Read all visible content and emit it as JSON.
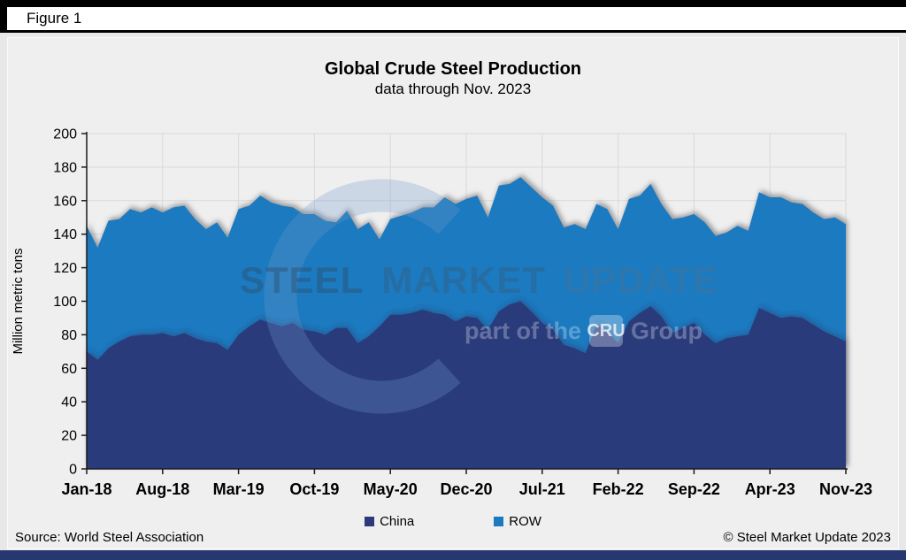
{
  "page": {
    "figure_label": "Figure 1"
  },
  "footer": {
    "source": "Source: World Steel Association",
    "copyright": "© Steel Market Update 2023"
  },
  "watermark": {
    "word1": "STEEL",
    "word2": "MARKET",
    "word3": "UPDATE",
    "line2_prefix": "part of the",
    "line2_box": "CRU",
    "line2_suffix": "Group"
  },
  "colors": {
    "china_area": "#2A3A7B",
    "row_area": "#1B7AC0",
    "plot_background": "#EFEFEF",
    "page_background": "#E8E8E8",
    "footer_strip": "#27376F",
    "gridline": "#D9D9D9",
    "axis": "#1a1a1a"
  },
  "chart_data": {
    "type": "area",
    "stacked": true,
    "title": "Global Crude Steel Production",
    "subtitle": "data through Nov. 2023",
    "xlabel": "",
    "ylabel": "Million metric tons",
    "ylim": [
      0,
      200
    ],
    "ytick_step": 20,
    "ytick_labels": [
      "0",
      "20",
      "40",
      "60",
      "80",
      "100",
      "120",
      "140",
      "160",
      "180",
      "200"
    ],
    "grid": true,
    "legend_position": "bottom",
    "x": [
      "Jan-18",
      "Feb-18",
      "Mar-18",
      "Apr-18",
      "May-18",
      "Jun-18",
      "Jul-18",
      "Aug-18",
      "Sep-18",
      "Oct-18",
      "Nov-18",
      "Dec-18",
      "Jan-19",
      "Feb-19",
      "Mar-19",
      "Apr-19",
      "May-19",
      "Jun-19",
      "Jul-19",
      "Aug-19",
      "Sep-19",
      "Oct-19",
      "Nov-19",
      "Dec-19",
      "Jan-20",
      "Feb-20",
      "Mar-20",
      "Apr-20",
      "May-20",
      "Jun-20",
      "Jul-20",
      "Aug-20",
      "Sep-20",
      "Oct-20",
      "Nov-20",
      "Dec-20",
      "Jan-21",
      "Feb-21",
      "Mar-21",
      "Apr-21",
      "May-21",
      "Jun-21",
      "Jul-21",
      "Aug-21",
      "Sep-21",
      "Oct-21",
      "Nov-21",
      "Dec-21",
      "Jan-22",
      "Feb-22",
      "Mar-22",
      "Apr-22",
      "May-22",
      "Jun-22",
      "Jul-22",
      "Aug-22",
      "Sep-22",
      "Oct-22",
      "Nov-22",
      "Dec-22",
      "Jan-23",
      "Feb-23",
      "Mar-23",
      "Apr-23",
      "May-23",
      "Jun-23",
      "Jul-23",
      "Aug-23",
      "Sep-23",
      "Oct-23",
      "Nov-23"
    ],
    "xtick_indices": [
      0,
      7,
      14,
      21,
      28,
      35,
      42,
      49,
      56,
      63,
      70
    ],
    "xtick_labels": [
      "Jan-18",
      "Aug-18",
      "Mar-19",
      "Oct-19",
      "May-20",
      "Dec-20",
      "Jul-21",
      "Feb-22",
      "Sep-22",
      "Apr-23",
      "Nov-23"
    ],
    "units": "Million metric tons",
    "series": [
      {
        "name": "China",
        "color": "#2A3A7B",
        "values": [
          70,
          65,
          72,
          76,
          79,
          80,
          80,
          81,
          79,
          81,
          78,
          76,
          75,
          71,
          80,
          85,
          89,
          87,
          85,
          87,
          83,
          82,
          80,
          84,
          84,
          75,
          79,
          85,
          92,
          92,
          93,
          95,
          93,
          92,
          88,
          91,
          90,
          83,
          94,
          98,
          100,
          94,
          87,
          83,
          74,
          72,
          69,
          86,
          82,
          75,
          88,
          93,
          97,
          91,
          81,
          84,
          87,
          80,
          75,
          78,
          79,
          80,
          96,
          93,
          90,
          91,
          90,
          86,
          82,
          79,
          76
        ]
      },
      {
        "name": "ROW",
        "color": "#1B7AC0",
        "values": [
          75,
          67,
          76,
          73,
          76,
          73,
          76,
          72,
          77,
          76,
          71,
          67,
          72,
          67,
          75,
          72,
          74,
          72,
          72,
          69,
          69,
          70,
          68,
          63,
          70,
          68,
          68,
          52,
          57,
          59,
          60,
          61,
          63,
          70,
          70,
          70,
          73,
          67,
          75,
          72,
          74,
          74,
          75,
          74,
          70,
          74,
          74,
          72,
          73,
          68,
          73,
          70,
          73,
          67,
          68,
          66,
          65,
          67,
          64,
          63,
          66,
          62,
          69,
          69,
          72,
          68,
          68,
          67,
          67,
          71,
          70
        ]
      }
    ]
  }
}
